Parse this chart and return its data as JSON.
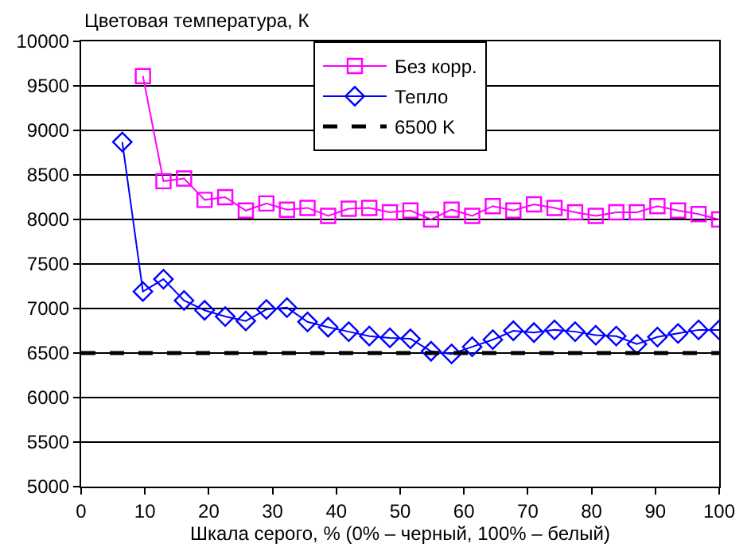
{
  "chart_data": {
    "type": "line",
    "ylabel": "Цветовая температура, К",
    "xlabel": "Шкала серого, % (0% – черный, 100% – белый)",
    "x": [
      6.45,
      9.68,
      12.9,
      16.13,
      19.35,
      22.58,
      25.81,
      29.03,
      32.26,
      35.48,
      38.71,
      41.94,
      45.16,
      48.39,
      51.61,
      54.84,
      58.06,
      61.29,
      64.52,
      67.74,
      70.97,
      74.19,
      77.42,
      80.65,
      83.87,
      87.1,
      90.32,
      93.55,
      96.77,
      100
    ],
    "series": [
      {
        "name": "Без корр.",
        "color": "#ff00ff",
        "marker": "square",
        "line_style": "solid",
        "values": [
          null,
          9610,
          8430,
          8460,
          8220,
          8250,
          8100,
          8180,
          8110,
          8130,
          8040,
          8120,
          8130,
          8080,
          8100,
          8000,
          8110,
          8040,
          8150,
          8100,
          8170,
          8130,
          8080,
          8040,
          8080,
          8080,
          8150,
          8100,
          8060,
          8000
        ]
      },
      {
        "name": "Тепло",
        "color": "#0000ff",
        "marker": "diamond",
        "line_style": "solid",
        "values": [
          8870,
          7190,
          7330,
          7090,
          6980,
          6910,
          6860,
          6990,
          7010,
          6850,
          6790,
          6740,
          6690,
          6670,
          6660,
          6520,
          6490,
          6570,
          6650,
          6750,
          6730,
          6760,
          6740,
          6700,
          6690,
          6600,
          6680,
          6720,
          6760,
          6760
        ]
      }
    ],
    "ref_lines": [
      {
        "axis": "y",
        "value": 6500,
        "label": "6500 K",
        "color": "#000000",
        "line_style": "dashed"
      }
    ],
    "xlim": [
      0,
      100
    ],
    "xticks": [
      0,
      10,
      20,
      30,
      40,
      50,
      60,
      70,
      80,
      90,
      100
    ],
    "ylim": [
      5000,
      10000
    ],
    "yticks": [
      5000,
      5500,
      6000,
      6500,
      7000,
      7500,
      8000,
      8500,
      9000,
      9500,
      10000
    ],
    "grid": "y",
    "legend": "top"
  }
}
